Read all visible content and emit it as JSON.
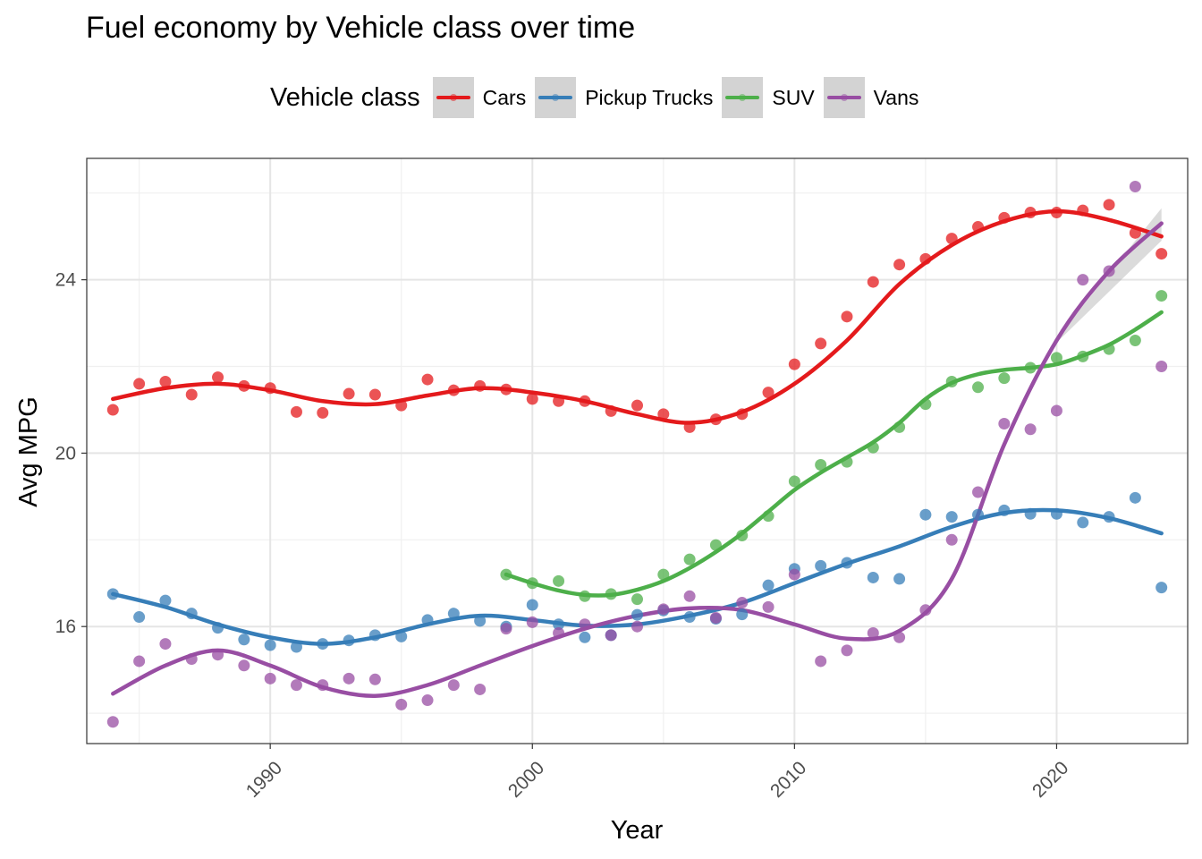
{
  "chart_data": {
    "type": "scatter",
    "title": "Fuel economy by Vehicle class over time",
    "xlabel": "Year",
    "ylabel": "Avg MPG",
    "xlim": [
      1983,
      2025
    ],
    "ylim": [
      13.3,
      26.8
    ],
    "x_ticks": [
      1990,
      2000,
      2010,
      2020
    ],
    "x_tick_labels": [
      "1990",
      "2000",
      "2010",
      "2020"
    ],
    "y_ticks": [
      16,
      20,
      24
    ],
    "y_tick_labels": [
      "16",
      "20",
      "24"
    ],
    "grid": true,
    "legend_title": "Vehicle class",
    "legend_position": "top",
    "series": [
      {
        "name": "Cars",
        "color": "#e41a1c",
        "points": [
          [
            1984,
            21.0
          ],
          [
            1985,
            21.6
          ],
          [
            1986,
            21.65
          ],
          [
            1987,
            21.35
          ],
          [
            1988,
            21.75
          ],
          [
            1989,
            21.55
          ],
          [
            1990,
            21.5
          ],
          [
            1991,
            20.95
          ],
          [
            1992,
            20.93
          ],
          [
            1993,
            21.37
          ],
          [
            1994,
            21.35
          ],
          [
            1995,
            21.1
          ],
          [
            1996,
            21.7
          ],
          [
            1997,
            21.45
          ],
          [
            1998,
            21.55
          ],
          [
            1999,
            21.47
          ],
          [
            2000,
            21.25
          ],
          [
            2001,
            21.2
          ],
          [
            2002,
            21.2
          ],
          [
            2003,
            20.97
          ],
          [
            2004,
            21.1
          ],
          [
            2005,
            20.9
          ],
          [
            2006,
            20.6
          ],
          [
            2007,
            20.78
          ],
          [
            2008,
            20.9
          ],
          [
            2009,
            21.4
          ],
          [
            2010,
            22.05
          ],
          [
            2011,
            22.53
          ],
          [
            2012,
            23.15
          ],
          [
            2013,
            23.95
          ],
          [
            2014,
            24.35
          ],
          [
            2015,
            24.48
          ],
          [
            2016,
            24.95
          ],
          [
            2017,
            25.22
          ],
          [
            2018,
            25.43
          ],
          [
            2019,
            25.55
          ],
          [
            2020,
            25.55
          ],
          [
            2021,
            25.6
          ],
          [
            2022,
            25.73
          ],
          [
            2023,
            25.08
          ],
          [
            2024,
            24.6
          ]
        ],
        "trend": [
          [
            1984,
            21.25
          ],
          [
            1986,
            21.5
          ],
          [
            1988,
            21.6
          ],
          [
            1990,
            21.45
          ],
          [
            1992,
            21.2
          ],
          [
            1994,
            21.13
          ],
          [
            1996,
            21.33
          ],
          [
            1998,
            21.5
          ],
          [
            2000,
            21.4
          ],
          [
            2002,
            21.2
          ],
          [
            2004,
            20.9
          ],
          [
            2006,
            20.7
          ],
          [
            2008,
            20.95
          ],
          [
            2010,
            21.6
          ],
          [
            2012,
            22.6
          ],
          [
            2014,
            23.9
          ],
          [
            2016,
            24.8
          ],
          [
            2018,
            25.35
          ],
          [
            2020,
            25.58
          ],
          [
            2022,
            25.38
          ],
          [
            2024,
            25.0
          ]
        ]
      },
      {
        "name": "Pickup Trucks",
        "color": "#377eb8",
        "points": [
          [
            1984,
            16.75
          ],
          [
            1985,
            16.22
          ],
          [
            1986,
            16.6
          ],
          [
            1987,
            16.3
          ],
          [
            1988,
            15.97
          ],
          [
            1989,
            15.7
          ],
          [
            1990,
            15.57
          ],
          [
            1991,
            15.53
          ],
          [
            1992,
            15.6
          ],
          [
            1993,
            15.68
          ],
          [
            1994,
            15.8
          ],
          [
            1995,
            15.77
          ],
          [
            1996,
            16.15
          ],
          [
            1997,
            16.3
          ],
          [
            1998,
            16.13
          ],
          [
            1999,
            16.0
          ],
          [
            2000,
            16.5
          ],
          [
            2001,
            16.05
          ],
          [
            2002,
            15.75
          ],
          [
            2003,
            15.8
          ],
          [
            2004,
            16.27
          ],
          [
            2005,
            16.37
          ],
          [
            2006,
            16.22
          ],
          [
            2007,
            16.18
          ],
          [
            2008,
            16.28
          ],
          [
            2009,
            16.95
          ],
          [
            2010,
            17.33
          ],
          [
            2011,
            17.4
          ],
          [
            2012,
            17.47
          ],
          [
            2013,
            17.13
          ],
          [
            2014,
            17.1
          ],
          [
            2015,
            18.58
          ],
          [
            2016,
            18.53
          ],
          [
            2017,
            18.58
          ],
          [
            2018,
            18.68
          ],
          [
            2019,
            18.6
          ],
          [
            2020,
            18.6
          ],
          [
            2021,
            18.4
          ],
          [
            2022,
            18.53
          ],
          [
            2023,
            18.97
          ],
          [
            2024,
            16.9
          ]
        ],
        "trend": [
          [
            1984,
            16.75
          ],
          [
            1986,
            16.45
          ],
          [
            1988,
            16.05
          ],
          [
            1990,
            15.75
          ],
          [
            1992,
            15.6
          ],
          [
            1994,
            15.75
          ],
          [
            1996,
            16.05
          ],
          [
            1998,
            16.25
          ],
          [
            2000,
            16.15
          ],
          [
            2002,
            16.02
          ],
          [
            2004,
            16.05
          ],
          [
            2006,
            16.25
          ],
          [
            2008,
            16.55
          ],
          [
            2010,
            17.0
          ],
          [
            2012,
            17.45
          ],
          [
            2014,
            17.85
          ],
          [
            2016,
            18.3
          ],
          [
            2018,
            18.62
          ],
          [
            2020,
            18.68
          ],
          [
            2022,
            18.5
          ],
          [
            2024,
            18.15
          ]
        ]
      },
      {
        "name": "SUV",
        "color": "#4daf4a",
        "points": [
          [
            1999,
            17.2
          ],
          [
            2000,
            17.0
          ],
          [
            2001,
            17.05
          ],
          [
            2002,
            16.7
          ],
          [
            2003,
            16.75
          ],
          [
            2004,
            16.63
          ],
          [
            2005,
            17.2
          ],
          [
            2006,
            17.55
          ],
          [
            2007,
            17.88
          ],
          [
            2008,
            18.1
          ],
          [
            2009,
            18.55
          ],
          [
            2010,
            19.35
          ],
          [
            2011,
            19.73
          ],
          [
            2012,
            19.8
          ],
          [
            2013,
            20.13
          ],
          [
            2014,
            20.6
          ],
          [
            2015,
            21.13
          ],
          [
            2016,
            21.65
          ],
          [
            2017,
            21.52
          ],
          [
            2018,
            21.73
          ],
          [
            2019,
            21.97
          ],
          [
            2020,
            22.2
          ],
          [
            2021,
            22.23
          ],
          [
            2022,
            22.4
          ],
          [
            2023,
            22.6
          ],
          [
            2024,
            23.63
          ]
        ],
        "trend": [
          [
            1999,
            17.2
          ],
          [
            2000,
            17.0
          ],
          [
            2001,
            16.83
          ],
          [
            2002,
            16.73
          ],
          [
            2003,
            16.73
          ],
          [
            2004,
            16.85
          ],
          [
            2005,
            17.05
          ],
          [
            2006,
            17.35
          ],
          [
            2007,
            17.72
          ],
          [
            2008,
            18.15
          ],
          [
            2009,
            18.65
          ],
          [
            2010,
            19.15
          ],
          [
            2011,
            19.55
          ],
          [
            2012,
            19.9
          ],
          [
            2013,
            20.25
          ],
          [
            2014,
            20.7
          ],
          [
            2015,
            21.25
          ],
          [
            2016,
            21.62
          ],
          [
            2017,
            21.82
          ],
          [
            2018,
            21.92
          ],
          [
            2019,
            21.97
          ],
          [
            2020,
            22.05
          ],
          [
            2021,
            22.25
          ],
          [
            2022,
            22.5
          ],
          [
            2023,
            22.85
          ],
          [
            2024,
            23.25
          ]
        ]
      },
      {
        "name": "Vans",
        "color": "#984ea3",
        "points": [
          [
            1984,
            13.8
          ],
          [
            1985,
            15.2
          ],
          [
            1986,
            15.6
          ],
          [
            1987,
            15.25
          ],
          [
            1988,
            15.35
          ],
          [
            1989,
            15.1
          ],
          [
            1990,
            14.8
          ],
          [
            1991,
            14.65
          ],
          [
            1992,
            14.65
          ],
          [
            1993,
            14.8
          ],
          [
            1994,
            14.78
          ],
          [
            1995,
            14.2
          ],
          [
            1996,
            14.3
          ],
          [
            1997,
            14.65
          ],
          [
            1998,
            14.55
          ],
          [
            1999,
            15.95
          ],
          [
            2000,
            16.1
          ],
          [
            2001,
            15.85
          ],
          [
            2002,
            16.05
          ],
          [
            2003,
            15.8
          ],
          [
            2004,
            16.0
          ],
          [
            2005,
            16.4
          ],
          [
            2006,
            16.7
          ],
          [
            2007,
            16.2
          ],
          [
            2008,
            16.55
          ],
          [
            2009,
            16.45
          ],
          [
            2010,
            17.2
          ],
          [
            2011,
            15.2
          ],
          [
            2012,
            15.45
          ],
          [
            2013,
            15.85
          ],
          [
            2014,
            15.75
          ],
          [
            2015,
            16.38
          ],
          [
            2016,
            18.0
          ],
          [
            2017,
            19.1
          ],
          [
            2018,
            20.68
          ],
          [
            2019,
            20.55
          ],
          [
            2020,
            20.98
          ],
          [
            2021,
            24.0
          ],
          [
            2022,
            24.2
          ],
          [
            2023,
            26.15
          ],
          [
            2024,
            22.0
          ]
        ],
        "trend": [
          [
            1984,
            14.45
          ],
          [
            1986,
            15.1
          ],
          [
            1988,
            15.45
          ],
          [
            1990,
            15.1
          ],
          [
            1992,
            14.6
          ],
          [
            1994,
            14.4
          ],
          [
            1996,
            14.65
          ],
          [
            1998,
            15.1
          ],
          [
            2000,
            15.55
          ],
          [
            2002,
            15.95
          ],
          [
            2004,
            16.25
          ],
          [
            2006,
            16.42
          ],
          [
            2008,
            16.38
          ],
          [
            2010,
            16.05
          ],
          [
            2012,
            15.72
          ],
          [
            2014,
            15.9
          ],
          [
            2016,
            17.1
          ],
          [
            2018,
            20.2
          ],
          [
            2020,
            22.6
          ],
          [
            2022,
            24.2
          ],
          [
            2024,
            25.3
          ]
        ]
      }
    ]
  }
}
